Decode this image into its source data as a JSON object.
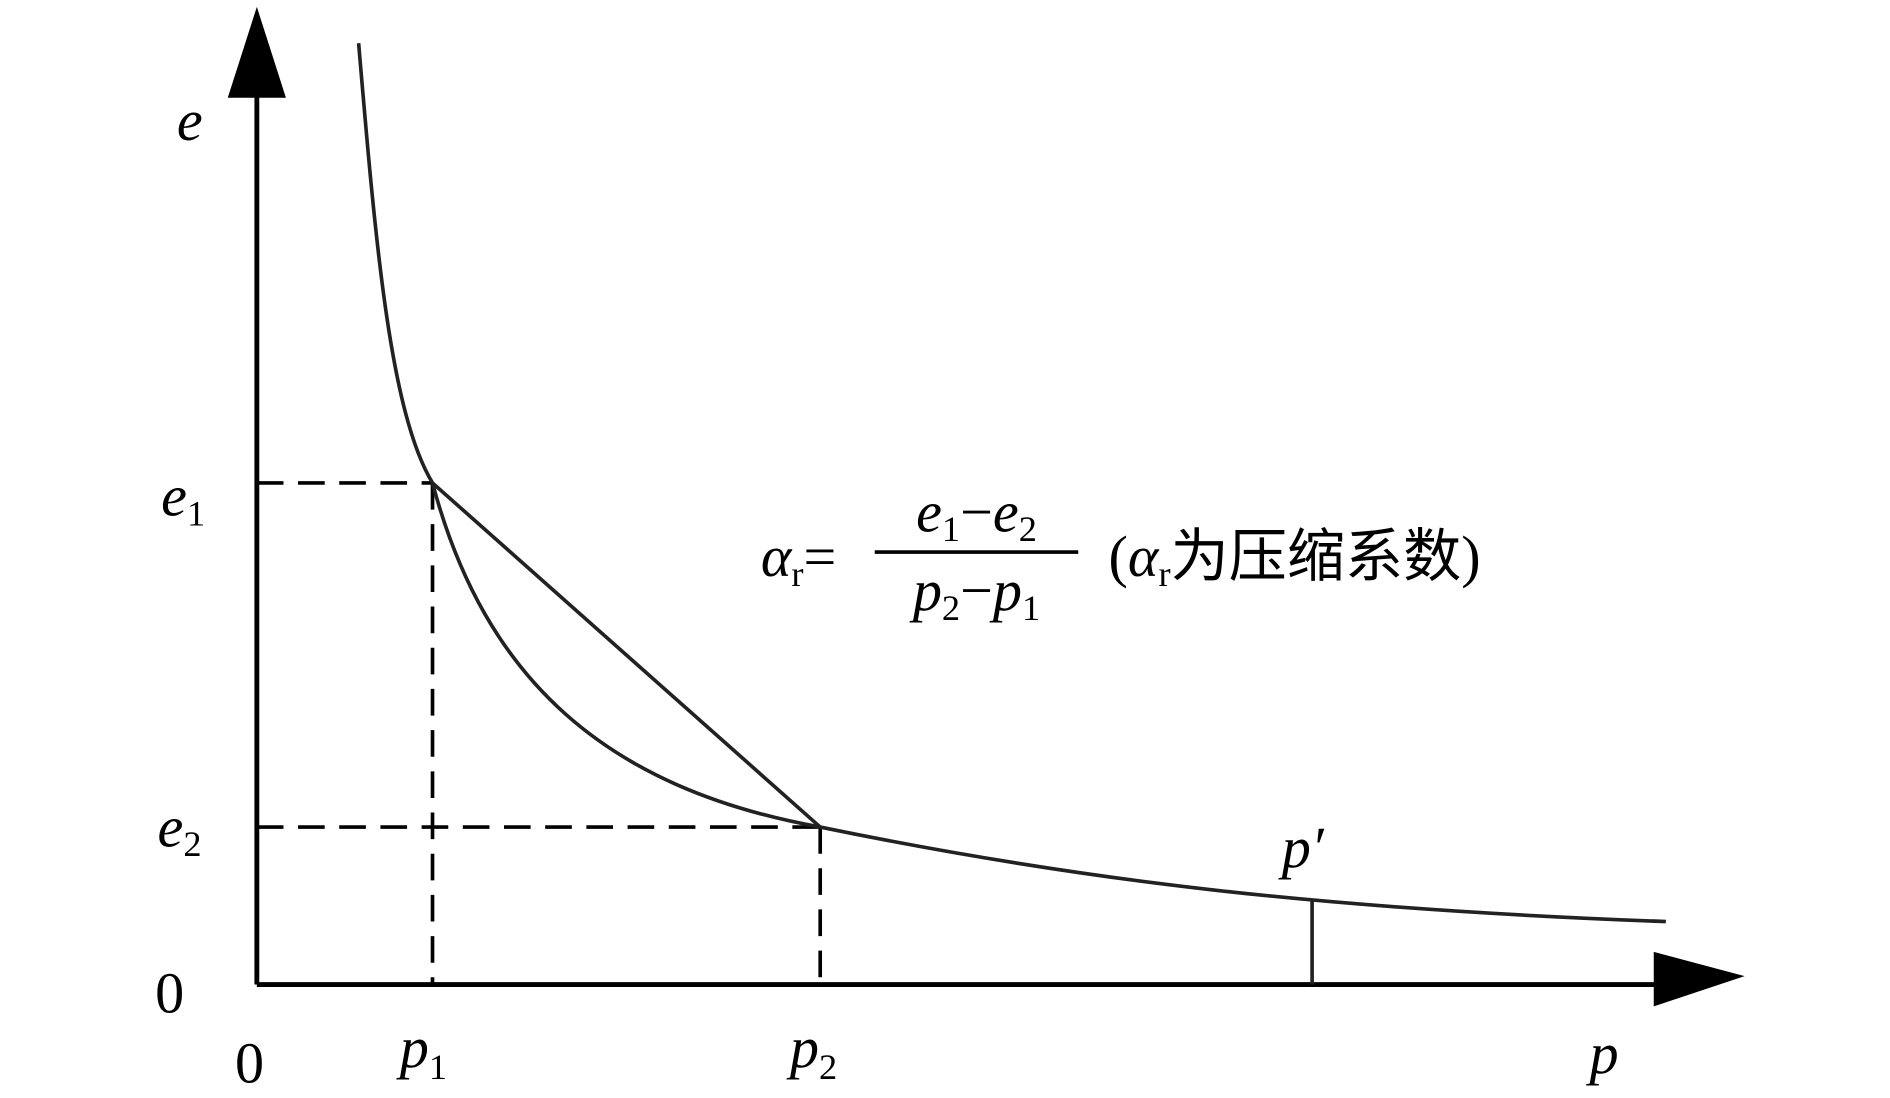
{
  "axes": {
    "y_label": "e",
    "x_label": "p",
    "origin_left": "0",
    "origin_bottom": "0"
  },
  "y_marks": [
    {
      "main": "e",
      "sub": "1"
    },
    {
      "main": "e",
      "sub": "2"
    }
  ],
  "x_marks": [
    {
      "main": "p",
      "sub": "1"
    },
    {
      "main": "p",
      "sub": "2"
    }
  ],
  "curve_point": "p′",
  "formula": {
    "symbol": "α",
    "symbol_sub": "r",
    "equals": "=",
    "numerator": [
      "e",
      "1",
      "−",
      "e",
      "2"
    ],
    "denominator": [
      "p",
      "2",
      "−",
      "p",
      "1"
    ],
    "note": [
      "(",
      "α",
      "r",
      "为压缩系数)"
    ]
  }
}
